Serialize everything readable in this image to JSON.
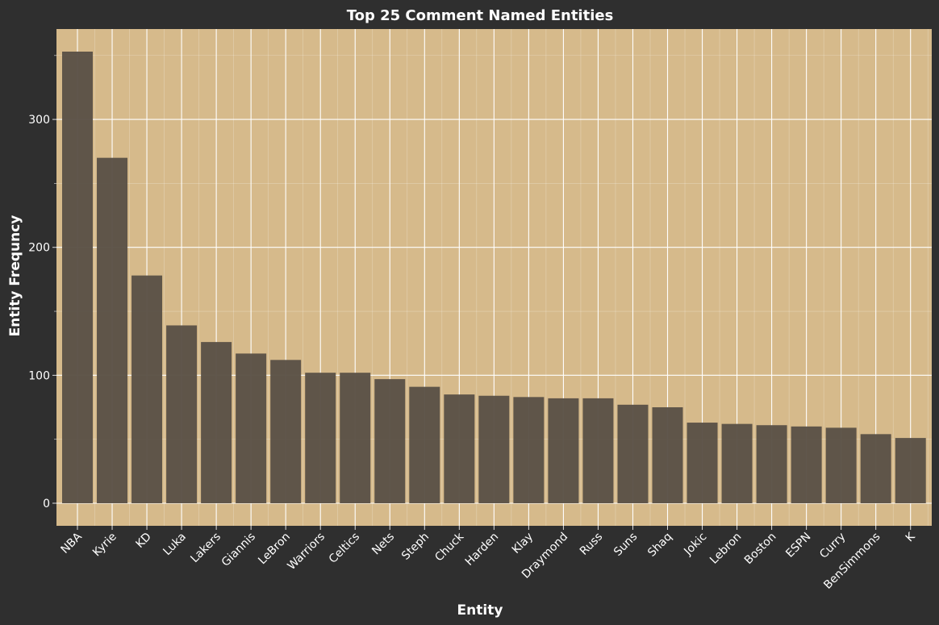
{
  "chart_data": {
    "type": "bar",
    "title": "Top 25 Comment Named Entities",
    "xlabel": "Entity",
    "ylabel": "Entity Frequncy",
    "categories": [
      "NBA",
      "Kyrie",
      "KD",
      "Luka",
      "Lakers",
      "Giannis",
      "LeBron",
      "Warriors",
      "Celtics",
      "Nets",
      "Steph",
      "Chuck",
      "Harden",
      "Klay",
      "Draymond",
      "Russ",
      "Suns",
      "Shaq",
      "Jokic",
      "Lebron",
      "Boston",
      "ESPN",
      "Curry",
      "BenSimmons",
      "K"
    ],
    "values": [
      353,
      270,
      178,
      139,
      126,
      117,
      112,
      102,
      102,
      97,
      91,
      85,
      84,
      83,
      82,
      82,
      77,
      75,
      63,
      62,
      61,
      60,
      59,
      54,
      51
    ],
    "yticks": [
      0,
      100,
      200,
      300
    ],
    "ylim": [
      -17.65,
      370.65
    ],
    "grid": true,
    "colors": {
      "background": "#2f2f2f",
      "panel": "#d6ba8b",
      "bar": "#5b5247",
      "grid": "#ffffff",
      "text": "#ffffff"
    }
  }
}
